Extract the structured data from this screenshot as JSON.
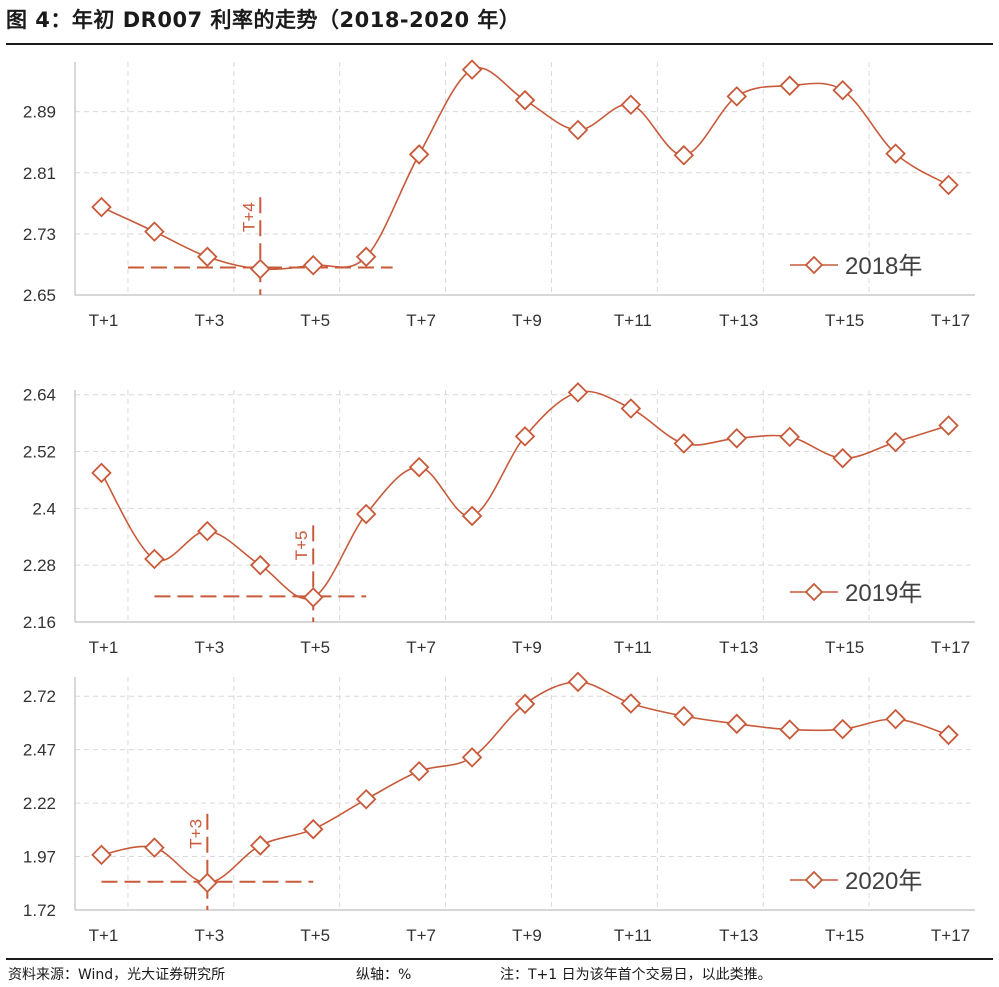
{
  "title": "图 4：年初 DR007 利率的走势（2018-2020 年）",
  "footer": {
    "source": "资料来源：Wind，光大证券研究所",
    "unit": "纵轴：%",
    "note": "注：T+1 日为该年首个交易日，以此类推。"
  },
  "colors": {
    "series": "#c85a3a",
    "grid": "#d9d9d9",
    "axis": "#bfbfbf",
    "text": "#1a1a1a"
  },
  "chart_data": [
    {
      "type": "line",
      "legend_label": "2018年",
      "legend_position": "bottom-right",
      "x_categories": [
        "T+1",
        "T+2",
        "T+3",
        "T+4",
        "T+5",
        "T+6",
        "T+7",
        "T+8",
        "T+9",
        "T+10",
        "T+11",
        "T+12",
        "T+13",
        "T+14",
        "T+15",
        "T+16",
        "T+17"
      ],
      "x_tick_labels": [
        "T+1",
        "T+3",
        "T+5",
        "T+7",
        "T+9",
        "T+11",
        "T+13",
        "T+15",
        "T+17"
      ],
      "y_ticks": [
        "2.65",
        "2.73",
        "2.81",
        "2.89"
      ],
      "ylim": [
        2.65,
        2.955
      ],
      "values": [
        2.765,
        2.733,
        2.7,
        2.684,
        2.689,
        2.7,
        2.834,
        2.945,
        2.905,
        2.866,
        2.899,
        2.833,
        2.91,
        2.924,
        2.918,
        2.835,
        2.794
      ],
      "grid": true,
      "annotation": {
        "label": "T+4",
        "at_index": 3,
        "hline_y": 2.686,
        "hline_from_index": 0.5,
        "hline_to_index": 5.5,
        "vline_from_y": 2.65,
        "vline_to_y": 2.778
      }
    },
    {
      "type": "line",
      "legend_label": "2019年",
      "legend_position": "bottom-right",
      "x_categories": [
        "T+1",
        "T+2",
        "T+3",
        "T+4",
        "T+5",
        "T+6",
        "T+7",
        "T+8",
        "T+9",
        "T+10",
        "T+11",
        "T+12",
        "T+13",
        "T+14",
        "T+15",
        "T+16",
        "T+17"
      ],
      "x_tick_labels": [
        "T+1",
        "T+3",
        "T+5",
        "T+7",
        "T+9",
        "T+11",
        "T+13",
        "T+15",
        "T+17"
      ],
      "y_ticks": [
        "2.16",
        "2.28",
        "2.4",
        "2.52",
        "2.64"
      ],
      "ylim": [
        2.16,
        2.65
      ],
      "values": [
        2.475,
        2.293,
        2.352,
        2.28,
        2.212,
        2.388,
        2.487,
        2.384,
        2.552,
        2.645,
        2.611,
        2.537,
        2.548,
        2.551,
        2.506,
        2.54,
        2.575
      ],
      "grid": true,
      "annotation": {
        "label": "T+5",
        "at_index": 4,
        "hline_y": 2.214,
        "hline_from_index": 1.0,
        "hline_to_index": 5.0,
        "vline_from_y": 2.16,
        "vline_to_y": 2.364
      }
    },
    {
      "type": "line",
      "legend_label": "2020年",
      "legend_position": "bottom-right",
      "x_categories": [
        "T+1",
        "T+2",
        "T+3",
        "T+4",
        "T+5",
        "T+6",
        "T+7",
        "T+8",
        "T+9",
        "T+10",
        "T+11",
        "T+12",
        "T+13",
        "T+14",
        "T+15",
        "T+16",
        "T+17"
      ],
      "x_tick_labels": [
        "T+1",
        "T+3",
        "T+5",
        "T+7",
        "T+9",
        "T+11",
        "T+13",
        "T+15",
        "T+17"
      ],
      "y_ticks": [
        "1.72",
        "1.97",
        "2.22",
        "2.47",
        "2.72"
      ],
      "ylim": [
        1.72,
        2.81
      ],
      "values": [
        1.978,
        2.012,
        1.847,
        2.022,
        2.098,
        2.238,
        2.369,
        2.434,
        2.684,
        2.787,
        2.686,
        2.627,
        2.591,
        2.564,
        2.566,
        2.613,
        2.539
      ],
      "grid": true,
      "annotation": {
        "label": "T+3",
        "at_index": 2,
        "hline_y": 1.852,
        "hline_from_index": 0.0,
        "hline_to_index": 4.0,
        "vline_from_y": 1.72,
        "vline_to_y": 2.17
      }
    }
  ]
}
